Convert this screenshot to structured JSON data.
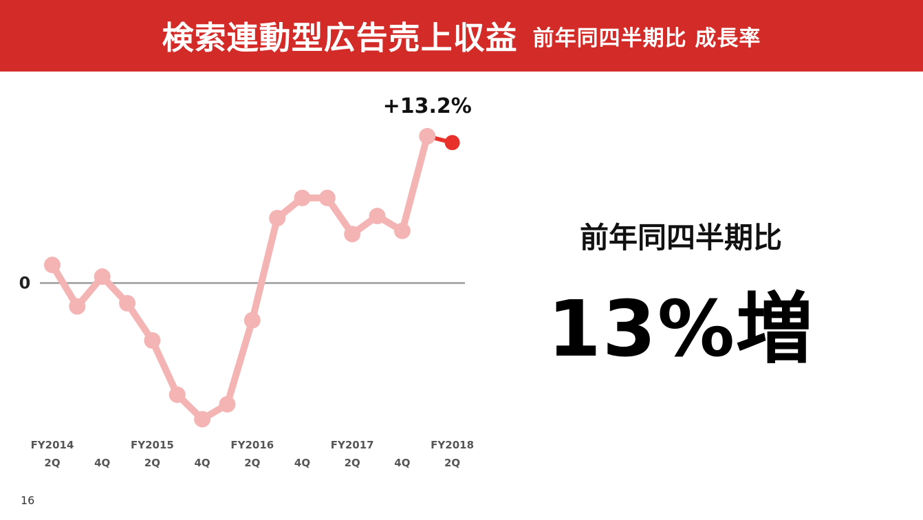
{
  "header": {
    "title": "検索連動型広告売上収益",
    "subtitle": "前年同四半期比 成長率"
  },
  "stat": {
    "label": "前年同四半期比",
    "value": "13%増"
  },
  "page_number": "16",
  "colors": {
    "header_bg": "#d32b27",
    "line": "#f4b4b4",
    "highlight": "#e8312a",
    "zero_line": "#aaaaaa"
  },
  "chart_data": {
    "type": "line",
    "title": "",
    "xlabel": "",
    "ylabel": "",
    "zero_label": "0",
    "grid": false,
    "x_labels": [
      {
        "year": "FY2014",
        "quarter": "2Q"
      },
      {
        "year": "",
        "quarter": "4Q"
      },
      {
        "year": "FY2015",
        "quarter": "2Q"
      },
      {
        "year": "",
        "quarter": "4Q"
      },
      {
        "year": "FY2016",
        "quarter": "2Q"
      },
      {
        "year": "",
        "quarter": "4Q"
      },
      {
        "year": "FY2017",
        "quarter": "2Q"
      },
      {
        "year": "",
        "quarter": "4Q"
      },
      {
        "year": "FY2018",
        "quarter": "2Q"
      }
    ],
    "values": [
      1.7,
      -2.2,
      0.6,
      -1.9,
      -5.4,
      -10.5,
      -12.8,
      -11.4,
      -3.5,
      6.1,
      8.0,
      8.0,
      4.6,
      6.3,
      4.9,
      13.8,
      13.2
    ],
    "ylim": [
      -14,
      16
    ],
    "highlight": {
      "from_index": 15,
      "to_index": 16,
      "label": "+13.2%"
    }
  }
}
